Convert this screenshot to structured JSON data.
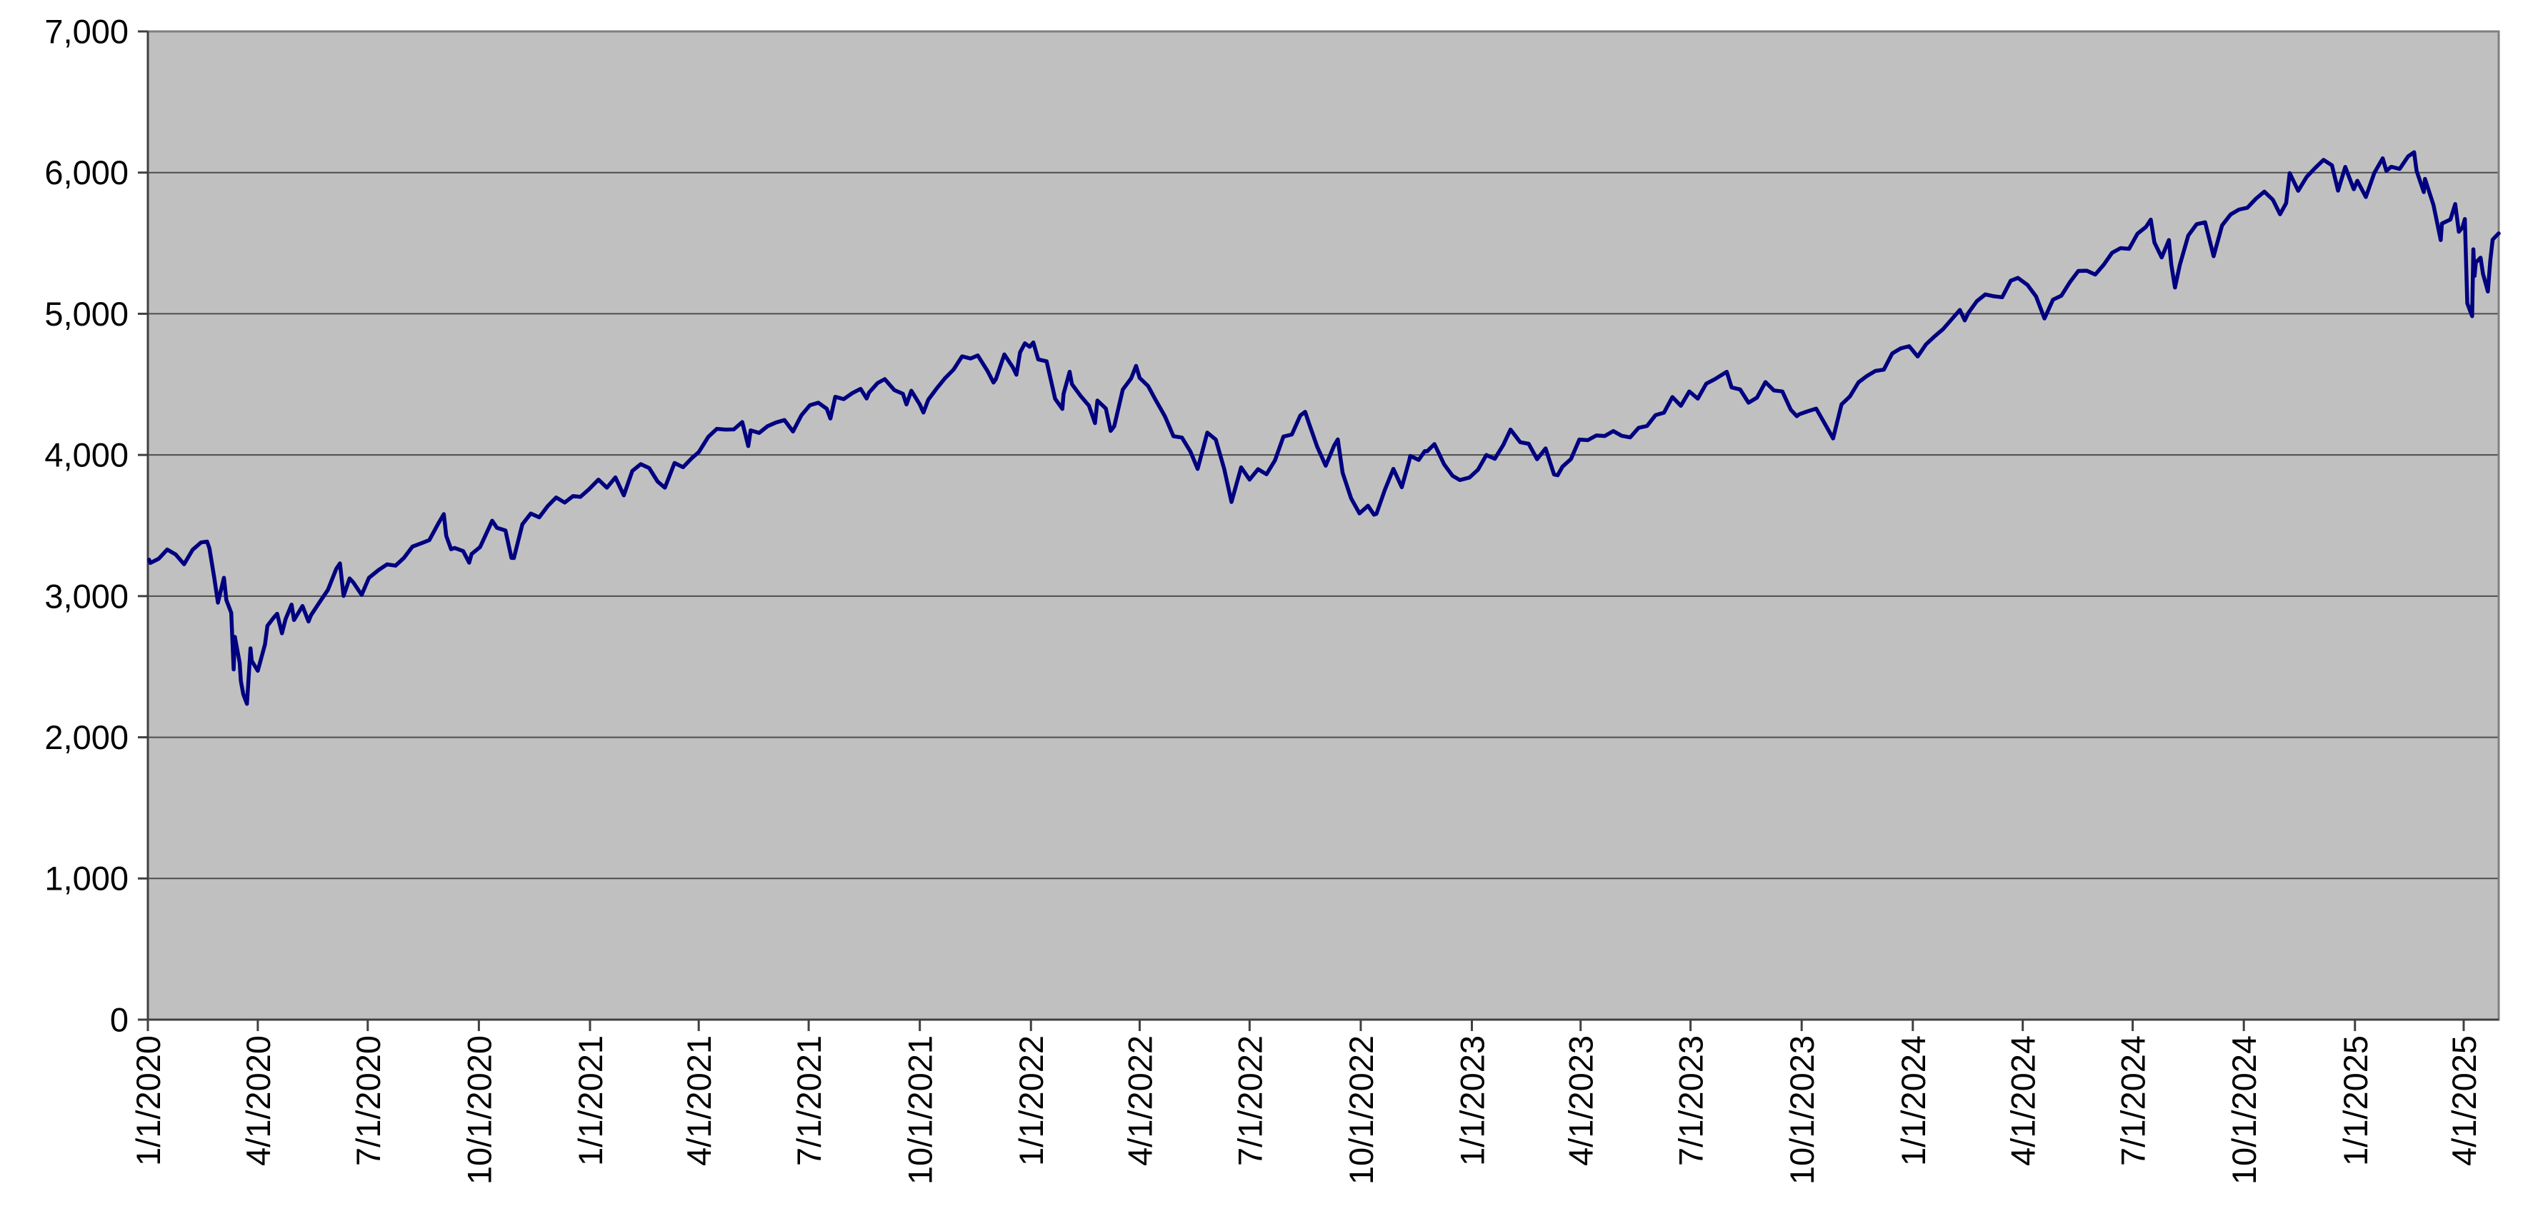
{
  "chart_data": {
    "type": "line",
    "title": "",
    "xlabel": "",
    "ylabel": "",
    "legend": "none",
    "grid": "horizontal",
    "ylim": [
      0,
      7000
    ],
    "ytick_labels": [
      "0",
      "1,000",
      "2,000",
      "3,000",
      "4,000",
      "5,000",
      "6,000",
      "7,000"
    ],
    "xtick_labels": [
      "1/1/2020",
      "4/1/2020",
      "7/1/2020",
      "10/1/2020",
      "1/1/2021",
      "4/1/2021",
      "7/1/2021",
      "10/1/2021",
      "1/1/2022",
      "4/1/2022",
      "7/1/2022",
      "10/1/2022",
      "1/1/2023",
      "4/1/2023",
      "7/1/2023",
      "10/1/2023",
      "1/1/2024",
      "4/1/2024",
      "7/1/2024",
      "10/1/2024",
      "1/1/2025",
      "4/1/2025"
    ],
    "colors": {
      "line": "#000080",
      "plot_background": "#c0c0c0",
      "page_background": "#ffffff",
      "gridline": "#4d4d4d",
      "plot_border": "#7f7f7f",
      "axis": "#404040",
      "label_text": "#000000"
    },
    "points": [
      [
        "1/2/2020",
        3258
      ],
      [
        "1/3/2020",
        3235
      ],
      [
        "1/10/2020",
        3265
      ],
      [
        "1/17/2020",
        3330
      ],
      [
        "1/24/2020",
        3295
      ],
      [
        "1/31/2020",
        3226
      ],
      [
        "2/7/2020",
        3328
      ],
      [
        "2/14/2020",
        3380
      ],
      [
        "2/19/2020",
        3386
      ],
      [
        "2/21/2020",
        3338
      ],
      [
        "2/25/2020",
        3128
      ],
      [
        "2/28/2020",
        2954
      ],
      [
        "3/4/2020",
        3130
      ],
      [
        "3/6/2020",
        2972
      ],
      [
        "3/10/2020",
        2882
      ],
      [
        "3/12/2020",
        2481
      ],
      [
        "3/13/2020",
        2711
      ],
      [
        "3/17/2020",
        2529
      ],
      [
        "3/18/2020",
        2398
      ],
      [
        "3/20/2020",
        2305
      ],
      [
        "3/23/2020",
        2237
      ],
      [
        "3/26/2020",
        2630
      ],
      [
        "3/27/2020",
        2541
      ],
      [
        "4/1/2020",
        2471
      ],
      [
        "4/7/2020",
        2659
      ],
      [
        "4/9/2020",
        2790
      ],
      [
        "4/14/2020",
        2846
      ],
      [
        "4/17/2020",
        2875
      ],
      [
        "4/21/2020",
        2737
      ],
      [
        "4/24/2020",
        2837
      ],
      [
        "4/29/2020",
        2940
      ],
      [
        "5/1/2020",
        2831
      ],
      [
        "5/8/2020",
        2930
      ],
      [
        "5/13/2020",
        2820
      ],
      [
        "5/15/2020",
        2864
      ],
      [
        "5/22/2020",
        2955
      ],
      [
        "5/29/2020",
        3044
      ],
      [
        "6/5/2020",
        3194
      ],
      [
        "6/8/2020",
        3232
      ],
      [
        "6/11/2020",
        3002
      ],
      [
        "6/16/2020",
        3125
      ],
      [
        "6/19/2020",
        3098
      ],
      [
        "6/26/2020",
        3009
      ],
      [
        "7/2/2020",
        3130
      ],
      [
        "7/10/2020",
        3185
      ],
      [
        "7/17/2020",
        3225
      ],
      [
        "7/24/2020",
        3216
      ],
      [
        "7/31/2020",
        3271
      ],
      [
        "8/7/2020",
        3351
      ],
      [
        "8/14/2020",
        3373
      ],
      [
        "8/21/2020",
        3397
      ],
      [
        "8/28/2020",
        3508
      ],
      [
        "9/2/2020",
        3581
      ],
      [
        "9/4/2020",
        3427
      ],
      [
        "9/8/2020",
        3332
      ],
      [
        "9/11/2020",
        3341
      ],
      [
        "9/18/2020",
        3319
      ],
      [
        "9/23/2020",
        3237
      ],
      [
        "9/25/2020",
        3298
      ],
      [
        "10/2/2020",
        3348
      ],
      [
        "10/9/2020",
        3477
      ],
      [
        "10/12/2020",
        3534
      ],
      [
        "10/16/2020",
        3484
      ],
      [
        "10/23/2020",
        3465
      ],
      [
        "10/28/2020",
        3271
      ],
      [
        "10/30/2020",
        3270
      ],
      [
        "11/6/2020",
        3509
      ],
      [
        "11/13/2020",
        3585
      ],
      [
        "11/20/2020",
        3558
      ],
      [
        "11/27/2020",
        3638
      ],
      [
        "12/4/2020",
        3699
      ],
      [
        "12/11/2020",
        3663
      ],
      [
        "12/18/2020",
        3709
      ],
      [
        "12/24/2020",
        3703
      ],
      [
        "12/31/2020",
        3756
      ],
      [
        "1/8/2021",
        3825
      ],
      [
        "1/15/2021",
        3768
      ],
      [
        "1/22/2021",
        3841
      ],
      [
        "1/29/2021",
        3714
      ],
      [
        "2/5/2021",
        3887
      ],
      [
        "2/12/2021",
        3935
      ],
      [
        "2/19/2021",
        3907
      ],
      [
        "2/26/2021",
        3811
      ],
      [
        "3/4/2021",
        3768
      ],
      [
        "3/12/2021",
        3943
      ],
      [
        "3/19/2021",
        3913
      ],
      [
        "3/26/2021",
        3975
      ],
      [
        "4/1/2021",
        4020
      ],
      [
        "4/9/2021",
        4129
      ],
      [
        "4/16/2021",
        4185
      ],
      [
        "4/23/2021",
        4180
      ],
      [
        "4/30/2021",
        4181
      ],
      [
        "5/7/2021",
        4233
      ],
      [
        "5/12/2021",
        4063
      ],
      [
        "5/14/2021",
        4174
      ],
      [
        "5/21/2021",
        4156
      ],
      [
        "5/28/2021",
        4204
      ],
      [
        "6/4/2021",
        4230
      ],
      [
        "6/11/2021",
        4247
      ],
      [
        "6/18/2021",
        4166
      ],
      [
        "6/25/2021",
        4281
      ],
      [
        "7/2/2021",
        4352
      ],
      [
        "7/9/2021",
        4370
      ],
      [
        "7/16/2021",
        4327
      ],
      [
        "7/19/2021",
        4258
      ],
      [
        "7/23/2021",
        4412
      ],
      [
        "7/30/2021",
        4395
      ],
      [
        "8/6/2021",
        4437
      ],
      [
        "8/13/2021",
        4468
      ],
      [
        "8/18/2021",
        4400
      ],
      [
        "8/20/2021",
        4442
      ],
      [
        "8/27/2021",
        4509
      ],
      [
        "9/2/2021",
        4537
      ],
      [
        "9/10/2021",
        4459
      ],
      [
        "9/17/2021",
        4433
      ],
      [
        "9/20/2021",
        4358
      ],
      [
        "9/24/2021",
        4455
      ],
      [
        "10/1/2021",
        4357
      ],
      [
        "10/4/2021",
        4300
      ],
      [
        "10/8/2021",
        4391
      ],
      [
        "10/15/2021",
        4471
      ],
      [
        "10/22/2021",
        4545
      ],
      [
        "10/29/2021",
        4605
      ],
      [
        "11/5/2021",
        4698
      ],
      [
        "11/12/2021",
        4683
      ],
      [
        "11/18/2021",
        4705
      ],
      [
        "11/26/2021",
        4595
      ],
      [
        "12/1/2021",
        4513
      ],
      [
        "12/3/2021",
        4538
      ],
      [
        "12/10/2021",
        4712
      ],
      [
        "12/17/2021",
        4621
      ],
      [
        "12/20/2021",
        4568
      ],
      [
        "12/23/2021",
        4726
      ],
      [
        "12/27/2021",
        4791
      ],
      [
        "12/31/2021",
        4766
      ],
      [
        "1/3/2022",
        4797
      ],
      [
        "1/7/2022",
        4677
      ],
      [
        "1/14/2022",
        4663
      ],
      [
        "1/21/2022",
        4398
      ],
      [
        "1/27/2022",
        4326
      ],
      [
        "1/28/2022",
        4432
      ],
      [
        "2/2/2022",
        4589
      ],
      [
        "2/4/2022",
        4501
      ],
      [
        "2/11/2022",
        4419
      ],
      [
        "2/18/2022",
        4349
      ],
      [
        "2/23/2022",
        4226
      ],
      [
        "2/25/2022",
        4385
      ],
      [
        "3/4/2022",
        4329
      ],
      [
        "3/8/2022",
        4170
      ],
      [
        "3/11/2022",
        4204
      ],
      [
        "3/18/2022",
        4463
      ],
      [
        "3/25/2022",
        4543
      ],
      [
        "3/29/2022",
        4631
      ],
      [
        "4/1/2022",
        4546
      ],
      [
        "4/8/2022",
        4488
      ],
      [
        "4/14/2022",
        4393
      ],
      [
        "4/22/2022",
        4272
      ],
      [
        "4/29/2022",
        4132
      ],
      [
        "5/6/2022",
        4123
      ],
      [
        "5/13/2022",
        4024
      ],
      [
        "5/19/2022",
        3901
      ],
      [
        "5/27/2022",
        4158
      ],
      [
        "6/3/2022",
        4109
      ],
      [
        "6/10/2022",
        3901
      ],
      [
        "6/16/2022",
        3667
      ],
      [
        "6/24/2022",
        3912
      ],
      [
        "7/1/2022",
        3825
      ],
      [
        "7/8/2022",
        3899
      ],
      [
        "7/15/2022",
        3863
      ],
      [
        "7/22/2022",
        3962
      ],
      [
        "7/29/2022",
        4130
      ],
      [
        "8/5/2022",
        4145
      ],
      [
        "8/12/2022",
        4280
      ],
      [
        "8/16/2022",
        4305
      ],
      [
        "8/19/2022",
        4228
      ],
      [
        "8/26/2022",
        4058
      ],
      [
        "9/2/2022",
        3924
      ],
      [
        "9/9/2022",
        4067
      ],
      [
        "9/12/2022",
        4110
      ],
      [
        "9/16/2022",
        3873
      ],
      [
        "9/23/2022",
        3693
      ],
      [
        "9/30/2022",
        3586
      ],
      [
        "10/7/2022",
        3640
      ],
      [
        "10/12/2022",
        3577
      ],
      [
        "10/14/2022",
        3583
      ],
      [
        "10/21/2022",
        3753
      ],
      [
        "10/28/2022",
        3901
      ],
      [
        "11/4/2022",
        3771
      ],
      [
        "11/10/2022",
        3956
      ],
      [
        "11/11/2022",
        3993
      ],
      [
        "11/18/2022",
        3965
      ],
      [
        "11/23/2022",
        4027
      ],
      [
        "11/25/2022",
        4026
      ],
      [
        "12/1/2022",
        4077
      ],
      [
        "12/9/2022",
        3934
      ],
      [
        "12/16/2022",
        3852
      ],
      [
        "12/22/2022",
        3822
      ],
      [
        "12/30/2022",
        3840
      ],
      [
        "1/6/2023",
        3895
      ],
      [
        "1/13/2023",
        3999
      ],
      [
        "1/20/2023",
        3973
      ],
      [
        "1/27/2023",
        4071
      ],
      [
        "2/2/2023",
        4180
      ],
      [
        "2/10/2023",
        4090
      ],
      [
        "2/17/2023",
        4079
      ],
      [
        "2/24/2023",
        3970
      ],
      [
        "3/3/2023",
        4046
      ],
      [
        "3/10/2023",
        3862
      ],
      [
        "3/13/2023",
        3856
      ],
      [
        "3/17/2023",
        3917
      ],
      [
        "3/24/2023",
        3971
      ],
      [
        "3/31/2023",
        4109
      ],
      [
        "4/7/2023",
        4105
      ],
      [
        "4/14/2023",
        4138
      ],
      [
        "4/21/2023",
        4134
      ],
      [
        "4/28/2023",
        4169
      ],
      [
        "5/5/2023",
        4136
      ],
      [
        "5/12/2023",
        4124
      ],
      [
        "5/19/2023",
        4192
      ],
      [
        "5/26/2023",
        4205
      ],
      [
        "6/2/2023",
        4282
      ],
      [
        "6/9/2023",
        4299
      ],
      [
        "6/16/2023",
        4410
      ],
      [
        "6/23/2023",
        4348
      ],
      [
        "6/30/2023",
        4450
      ],
      [
        "7/7/2023",
        4399
      ],
      [
        "7/14/2023",
        4505
      ],
      [
        "7/21/2023",
        4536
      ],
      [
        "7/31/2023",
        4589
      ],
      [
        "8/4/2023",
        4478
      ],
      [
        "8/11/2023",
        4464
      ],
      [
        "8/18/2023",
        4370
      ],
      [
        "8/25/2023",
        4406
      ],
      [
        "9/1/2023",
        4516
      ],
      [
        "9/8/2023",
        4457
      ],
      [
        "9/15/2023",
        4450
      ],
      [
        "9/22/2023",
        4320
      ],
      [
        "9/27/2023",
        4275
      ],
      [
        "9/29/2023",
        4288
      ],
      [
        "10/6/2023",
        4309
      ],
      [
        "10/13/2023",
        4328
      ],
      [
        "10/20/2023",
        4224
      ],
      [
        "10/27/2023",
        4117
      ],
      [
        "11/3/2023",
        4358
      ],
      [
        "11/10/2023",
        4415
      ],
      [
        "11/17/2023",
        4514
      ],
      [
        "11/24/2023",
        4559
      ],
      [
        "12/1/2023",
        4595
      ],
      [
        "12/8/2023",
        4604
      ],
      [
        "12/15/2023",
        4719
      ],
      [
        "12/22/2023",
        4755
      ],
      [
        "12/29/2023",
        4770
      ],
      [
        "1/5/2024",
        4697
      ],
      [
        "1/12/2024",
        4784
      ],
      [
        "1/19/2024",
        4840
      ],
      [
        "1/26/2024",
        4891
      ],
      [
        "2/2/2024",
        4959
      ],
      [
        "2/9/2024",
        5027
      ],
      [
        "2/13/2024",
        4953
      ],
      [
        "2/16/2024",
        5006
      ],
      [
        "2/23/2024",
        5089
      ],
      [
        "3/1/2024",
        5137
      ],
      [
        "3/8/2024",
        5124
      ],
      [
        "3/15/2024",
        5117
      ],
      [
        "3/22/2024",
        5234
      ],
      [
        "3/28/2024",
        5254
      ],
      [
        "4/5/2024",
        5204
      ],
      [
        "4/12/2024",
        5123
      ],
      [
        "4/19/2024",
        4967
      ],
      [
        "4/26/2024",
        5100
      ],
      [
        "5/3/2024",
        5128
      ],
      [
        "5/10/2024",
        5223
      ],
      [
        "5/17/2024",
        5303
      ],
      [
        "5/24/2024",
        5305
      ],
      [
        "5/31/2024",
        5278
      ],
      [
        "6/7/2024",
        5347
      ],
      [
        "6/14/2024",
        5432
      ],
      [
        "6/21/2024",
        5465
      ],
      [
        "6/28/2024",
        5460
      ],
      [
        "7/5/2024",
        5567
      ],
      [
        "7/12/2024",
        5615
      ],
      [
        "7/16/2024",
        5667
      ],
      [
        "7/19/2024",
        5505
      ],
      [
        "7/25/2024",
        5399
      ],
      [
        "7/31/2024",
        5522
      ],
      [
        "8/2/2024",
        5347
      ],
      [
        "8/5/2024",
        5186
      ],
      [
        "8/9/2024",
        5344
      ],
      [
        "8/16/2024",
        5554
      ],
      [
        "8/23/2024",
        5635
      ],
      [
        "8/30/2024",
        5648
      ],
      [
        "9/6/2024",
        5408
      ],
      [
        "9/13/2024",
        5626
      ],
      [
        "9/20/2024",
        5703
      ],
      [
        "9/27/2024",
        5738
      ],
      [
        "10/4/2024",
        5751
      ],
      [
        "10/11/2024",
        5815
      ],
      [
        "10/18/2024",
        5865
      ],
      [
        "10/25/2024",
        5808
      ],
      [
        "10/31/2024",
        5705
      ],
      [
        "11/5/2024",
        5783
      ],
      [
        "11/8/2024",
        5996
      ],
      [
        "11/15/2024",
        5871
      ],
      [
        "11/22/2024",
        5969
      ],
      [
        "11/29/2024",
        6032
      ],
      [
        "12/6/2024",
        6090
      ],
      [
        "12/13/2024",
        6051
      ],
      [
        "12/18/2024",
        5872
      ],
      [
        "12/24/2024",
        6040
      ],
      [
        "12/27/2024",
        5971
      ],
      [
        "12/31/2024",
        5882
      ],
      [
        "1/3/2025",
        5942
      ],
      [
        "1/10/2025",
        5827
      ],
      [
        "1/17/2025",
        5997
      ],
      [
        "1/24/2025",
        6101
      ],
      [
        "1/27/2025",
        6012
      ],
      [
        "1/31/2025",
        6041
      ],
      [
        "2/7/2025",
        6026
      ],
      [
        "2/14/2025",
        6115
      ],
      [
        "2/19/2025",
        6144
      ],
      [
        "2/21/2025",
        6013
      ],
      [
        "2/27/2025",
        5862
      ],
      [
        "2/28/2025",
        5955
      ],
      [
        "3/7/2025",
        5770
      ],
      [
        "3/13/2025",
        5522
      ],
      [
        "3/14/2025",
        5639
      ],
      [
        "3/21/2025",
        5668
      ],
      [
        "3/25/2025",
        5777
      ],
      [
        "3/28/2025",
        5581
      ],
      [
        "3/31/2025",
        5612
      ],
      [
        "4/2/2025",
        5671
      ],
      [
        "4/4/2025",
        5074
      ],
      [
        "4/8/2025",
        4983
      ],
      [
        "4/9/2025",
        5457
      ],
      [
        "4/10/2025",
        5268
      ],
      [
        "4/11/2025",
        5363
      ],
      [
        "4/15/2025",
        5397
      ],
      [
        "4/17/2025",
        5283
      ],
      [
        "4/21/2025",
        5158
      ],
      [
        "4/23/2025",
        5376
      ],
      [
        "4/25/2025",
        5525
      ],
      [
        "4/29/2025",
        5561
      ],
      [
        "4/30/2025",
        5569
      ]
    ]
  }
}
